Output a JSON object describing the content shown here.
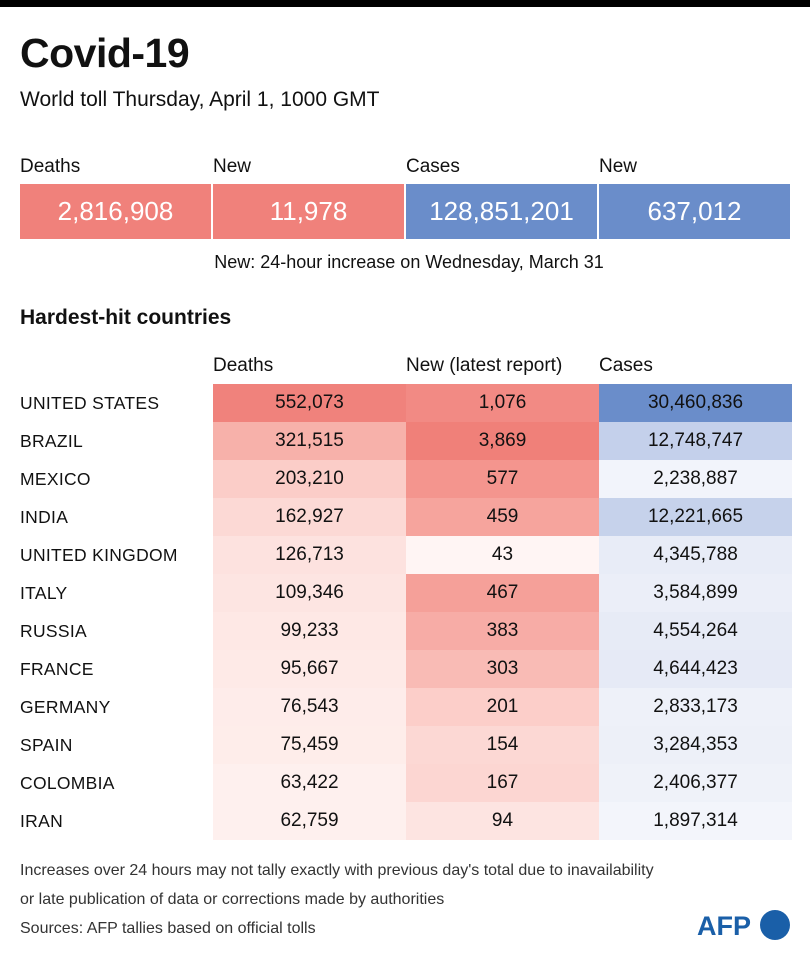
{
  "title": "Covid-19",
  "subtitle": "World toll Thursday, April 1, 1000 GMT",
  "summary": {
    "items": [
      {
        "label": "Deaths",
        "value": "2,816,908"
      },
      {
        "label": "New",
        "value": "11,978"
      },
      {
        "label": "Cases",
        "value": "128,851,201"
      },
      {
        "label": "New",
        "value": "637,012"
      }
    ],
    "colors": [
      "#f0817b",
      "#f0817b",
      "#6a8dca",
      "#6a8dca"
    ]
  },
  "note": "New: 24-hour increase on Wednesday, March 31",
  "section_title": "Hardest-hit countries",
  "chart_data": {
    "type": "table",
    "columns": [
      "Deaths",
      "New (latest report)",
      "Cases"
    ],
    "rows": [
      {
        "country": "UNITED STATES",
        "deaths": "552,073",
        "new": "1,076",
        "cases": "30,460,836"
      },
      {
        "country": "BRAZIL",
        "deaths": "321,515",
        "new": "3,869",
        "cases": "12,748,747"
      },
      {
        "country": "MEXICO",
        "deaths": "203,210",
        "new": "577",
        "cases": "2,238,887"
      },
      {
        "country": "INDIA",
        "deaths": "162,927",
        "new": "459",
        "cases": "12,221,665"
      },
      {
        "country": "UNITED KINGDOM",
        "deaths": "126,713",
        "new": "43",
        "cases": "4,345,788"
      },
      {
        "country": "ITALY",
        "deaths": "109,346",
        "new": "467",
        "cases": "3,584,899"
      },
      {
        "country": "RUSSIA",
        "deaths": "99,233",
        "new": "383",
        "cases": "4,554,264"
      },
      {
        "country": "FRANCE",
        "deaths": "95,667",
        "new": "303",
        "cases": "4,644,423"
      },
      {
        "country": "GERMANY",
        "deaths": "76,543",
        "new": "201",
        "cases": "2,833,173"
      },
      {
        "country": "SPAIN",
        "deaths": "75,459",
        "new": "154",
        "cases": "3,284,353"
      },
      {
        "country": "COLOMBIA",
        "deaths": "63,422",
        "new": "167",
        "cases": "2,406,377"
      },
      {
        "country": "IRAN",
        "deaths": "62,759",
        "new": "94",
        "cases": "1,897,314"
      }
    ],
    "cell_colors": {
      "deaths": [
        "#f0827c",
        "#f7b1aa",
        "#fbcdc8",
        "#fcd9d5",
        "#fde2df",
        "#fde5e2",
        "#fee8e5",
        "#feeae7",
        "#feecea",
        "#feedea",
        "#fef0ee",
        "#fef0ee"
      ],
      "new": [
        "#f28a84",
        "#f08079",
        "#f4958e",
        "#f6a49d",
        "#fff5f4",
        "#f5a099",
        "#f7aca6",
        "#f9bbb5",
        "#fccec9",
        "#fcd8d4",
        "#fcd6d2",
        "#fde4e1"
      ],
      "cases": [
        "#6a8dca",
        "#c4d0eb",
        "#f2f4fb",
        "#c6d2eb",
        "#e8ecf7",
        "#ebeef8",
        "#e7ebf6",
        "#e6eaf6",
        "#eef1f9",
        "#edf0f8",
        "#eff2f9",
        "#f3f5fb"
      ]
    }
  },
  "footnotes": [
    "Increases over 24 hours may not tally exactly with previous day's total due to inavailability",
    "or late publication of data or corrections made by authorities",
    "Sources: AFP tallies based on official tolls"
  ],
  "logo": {
    "text": "AFP",
    "color": "#1a5fa8"
  }
}
